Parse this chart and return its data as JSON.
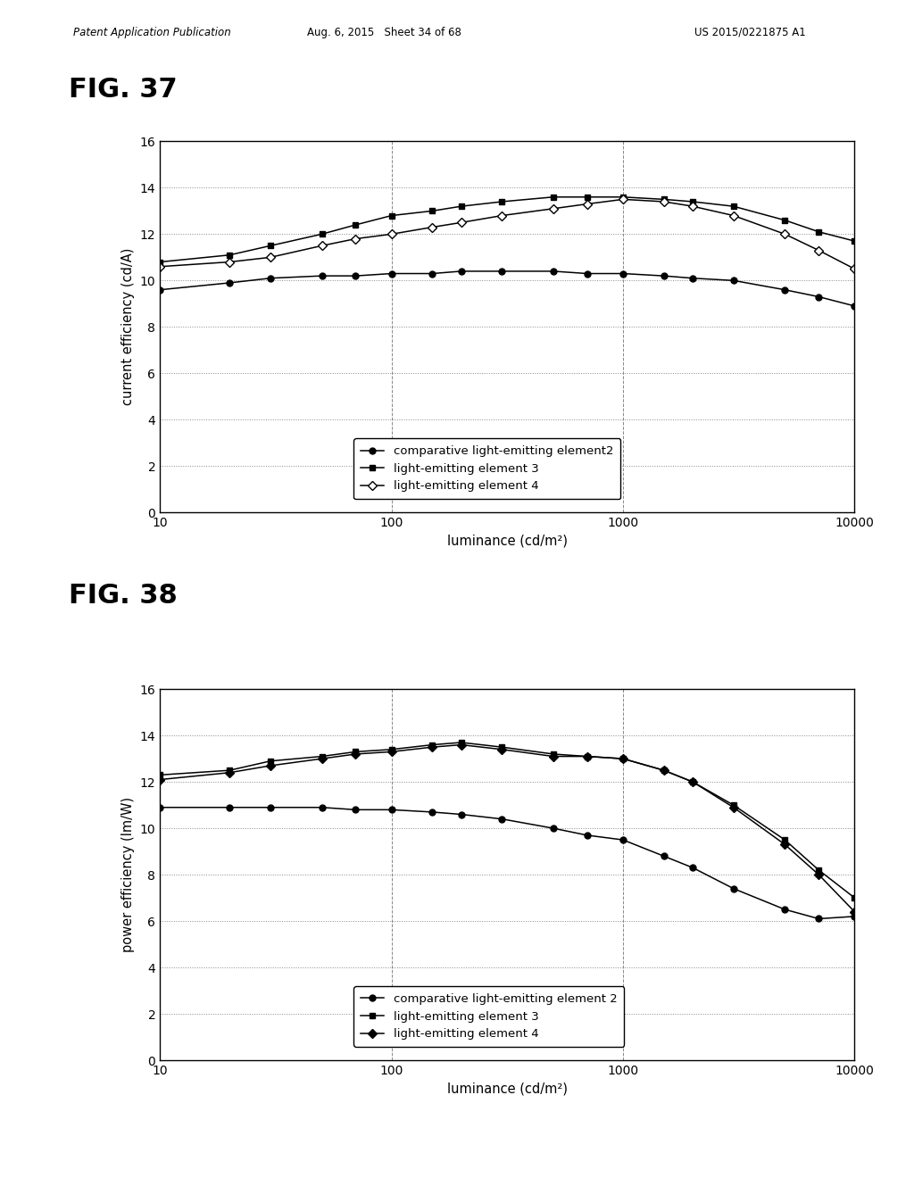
{
  "header_left": "Patent Application Publication",
  "header_mid": "Aug. 6, 2015   Sheet 34 of 68",
  "header_right": "US 2015/0221875 A1",
  "fig37_title": "FIG. 37",
  "fig38_title": "FIG. 38",
  "fig37_ylabel": "current efficiency (cd/A)",
  "fig38_ylabel": "power efficiency (lm/W)",
  "xlabel": "luminance (cd/m²)",
  "ylim": [
    0,
    16
  ],
  "yticks": [
    0,
    2,
    4,
    6,
    8,
    10,
    12,
    14,
    16
  ],
  "xlim": [
    10,
    10000
  ],
  "fig37_series": [
    {
      "label": "comparative light-emitting element2",
      "marker": "o",
      "markerfacecolor": "black",
      "color": "black",
      "x": [
        10,
        20,
        30,
        50,
        70,
        100,
        150,
        200,
        300,
        500,
        700,
        1000,
        1500,
        2000,
        3000,
        5000,
        7000,
        10000
      ],
      "y": [
        9.6,
        9.9,
        10.1,
        10.2,
        10.2,
        10.3,
        10.3,
        10.4,
        10.4,
        10.4,
        10.3,
        10.3,
        10.2,
        10.1,
        10.0,
        9.6,
        9.3,
        8.9
      ]
    },
    {
      "label": "light-emitting element 3",
      "marker": "s",
      "markerfacecolor": "black",
      "color": "black",
      "x": [
        10,
        20,
        30,
        50,
        70,
        100,
        150,
        200,
        300,
        500,
        700,
        1000,
        1500,
        2000,
        3000,
        5000,
        7000,
        10000
      ],
      "y": [
        10.8,
        11.1,
        11.5,
        12.0,
        12.4,
        12.8,
        13.0,
        13.2,
        13.4,
        13.6,
        13.6,
        13.6,
        13.5,
        13.4,
        13.2,
        12.6,
        12.1,
        11.7
      ]
    },
    {
      "label": "light-emitting element 4",
      "marker": "D",
      "markerfacecolor": "white",
      "color": "black",
      "x": [
        10,
        20,
        30,
        50,
        70,
        100,
        150,
        200,
        300,
        500,
        700,
        1000,
        1500,
        2000,
        3000,
        5000,
        7000,
        10000
      ],
      "y": [
        10.6,
        10.8,
        11.0,
        11.5,
        11.8,
        12.0,
        12.3,
        12.5,
        12.8,
        13.1,
        13.3,
        13.5,
        13.4,
        13.2,
        12.8,
        12.0,
        11.3,
        10.5
      ]
    }
  ],
  "fig38_series": [
    {
      "label": "comparative light-emitting element 2",
      "marker": "o",
      "markerfacecolor": "black",
      "color": "black",
      "x": [
        10,
        20,
        30,
        50,
        70,
        100,
        150,
        200,
        300,
        500,
        700,
        1000,
        1500,
        2000,
        3000,
        5000,
        7000,
        10000
      ],
      "y": [
        10.9,
        10.9,
        10.9,
        10.9,
        10.8,
        10.8,
        10.7,
        10.6,
        10.4,
        10.0,
        9.7,
        9.5,
        8.8,
        8.3,
        7.4,
        6.5,
        6.1,
        6.2
      ]
    },
    {
      "label": "light-emitting element 3",
      "marker": "s",
      "markerfacecolor": "black",
      "color": "black",
      "x": [
        10,
        20,
        30,
        50,
        70,
        100,
        150,
        200,
        300,
        500,
        700,
        1000,
        1500,
        2000,
        3000,
        5000,
        7000,
        10000
      ],
      "y": [
        12.3,
        12.5,
        12.9,
        13.1,
        13.3,
        13.4,
        13.6,
        13.7,
        13.5,
        13.2,
        13.1,
        13.0,
        12.5,
        12.0,
        11.0,
        9.5,
        8.2,
        7.0
      ]
    },
    {
      "label": "light-emitting element 4",
      "marker": "D",
      "markerfacecolor": "black",
      "color": "black",
      "x": [
        10,
        20,
        30,
        50,
        70,
        100,
        150,
        200,
        300,
        500,
        700,
        1000,
        1500,
        2000,
        3000,
        5000,
        7000,
        10000
      ],
      "y": [
        12.1,
        12.4,
        12.7,
        13.0,
        13.2,
        13.3,
        13.5,
        13.6,
        13.4,
        13.1,
        13.1,
        13.0,
        12.5,
        12.0,
        10.9,
        9.3,
        8.0,
        6.4
      ]
    }
  ],
  "background_color": "#ffffff",
  "grid_color": "#888888",
  "legend_fontsize": 9.5,
  "axis_fontsize": 10.5,
  "tick_fontsize": 10,
  "fig_label_fontsize": 22,
  "header_fontsize": 8.5
}
